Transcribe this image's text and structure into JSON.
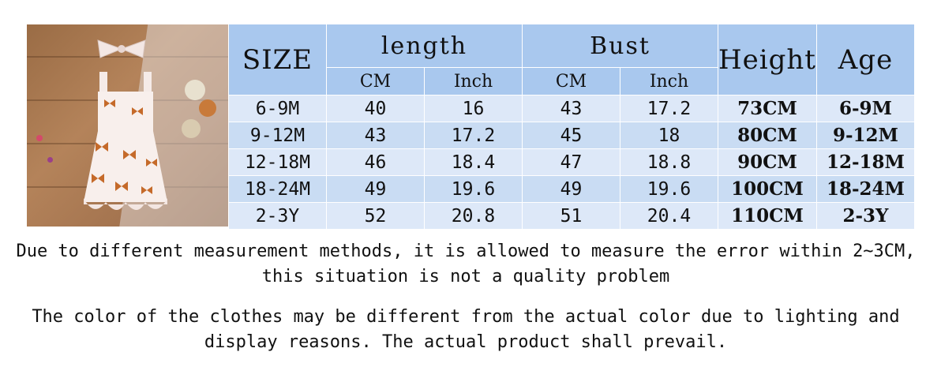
{
  "table": {
    "header": {
      "size": "SIZE",
      "length": "length",
      "bust": "Bust",
      "height": "Height",
      "age": "Age",
      "cm": "CM",
      "inch": "Inch"
    },
    "rows": [
      {
        "size": "6-9M",
        "length_cm": "40",
        "length_inch": "16",
        "bust_cm": "43",
        "bust_inch": "17.2",
        "height": "73CM",
        "age": "6-9M"
      },
      {
        "size": "9-12M",
        "length_cm": "43",
        "length_inch": "17.2",
        "bust_cm": "45",
        "bust_inch": "18",
        "height": "80CM",
        "age": "9-12M"
      },
      {
        "size": "12-18M",
        "length_cm": "46",
        "length_inch": "18.4",
        "bust_cm": "47",
        "bust_inch": "18.8",
        "height": "90CM",
        "age": "12-18M"
      },
      {
        "size": "18-24M",
        "length_cm": "49",
        "length_inch": "19.6",
        "bust_cm": "49",
        "bust_inch": "19.6",
        "height": "100CM",
        "age": "18-24M"
      },
      {
        "size": "2-3Y",
        "length_cm": "52",
        "length_inch": "20.8",
        "bust_cm": "51",
        "bust_inch": "20.4",
        "height": "110CM",
        "age": "2-3Y"
      }
    ]
  },
  "notes": {
    "measurement": "Due to different measurement methods, it is allowed to measure the error within 2~3CM, this situation is not a quality problem",
    "color": "The color of the clothes may be different from the actual color due to lighting and display reasons. The actual product shall prevail."
  },
  "colors": {
    "header_bg": "#a9c8ee",
    "row_light": "#dde8f8",
    "row_dark": "#c9dcf3"
  }
}
